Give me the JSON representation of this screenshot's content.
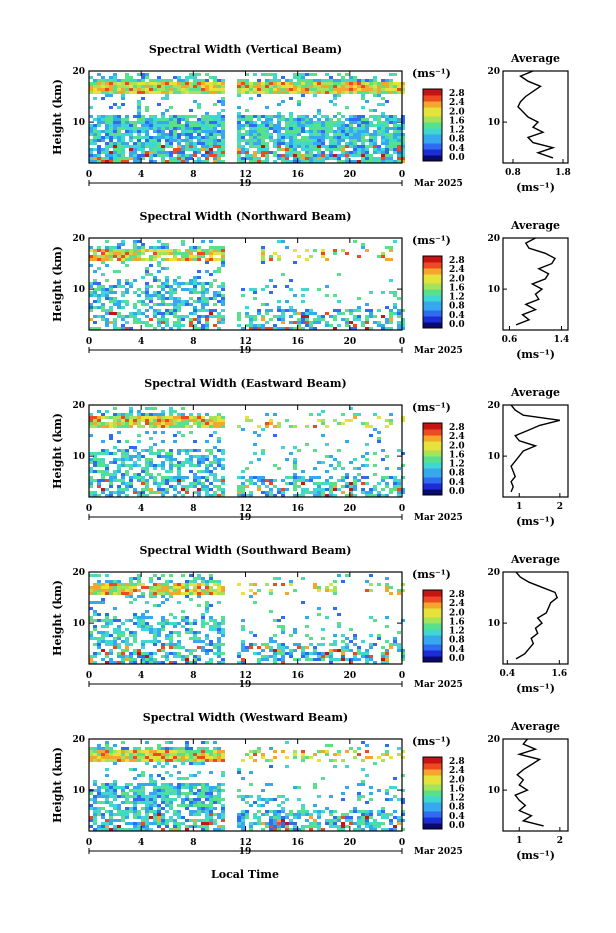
{
  "x_axis_label": "Local Time",
  "date_label": "Mar 2025",
  "day_label": "19",
  "avg_title": "Average",
  "unit_label": "(ms⁻¹)",
  "y_label": "Height (km)",
  "colorbar_ticks": [
    "0.0",
    "0.4",
    "0.8",
    "1.2",
    "1.6",
    "2.0",
    "2.4",
    "2.8"
  ],
  "colormap": [
    "#0a0a6e",
    "#1d2dd6",
    "#2f6cf2",
    "#36a8ee",
    "#3fd7d0",
    "#58e08a",
    "#a4e35a",
    "#e6e23c",
    "#f6a52d",
    "#ee4a22",
    "#c41414"
  ],
  "chart_data": [
    {
      "type": "heatmap",
      "title": "Spectral Width (Vertical Beam)",
      "x_ticks": [
        "0",
        "4",
        "8",
        "12",
        "16",
        "20",
        "0"
      ],
      "y_ticks": [
        "20",
        "10"
      ],
      "xlim": [
        0,
        24
      ],
      "ylim": [
        2,
        20
      ],
      "clim": [
        0.0,
        3.0
      ],
      "average_profile": {
        "x_ticks": [
          "0.8",
          "1.8"
        ],
        "xlim": [
          0.6,
          1.9
        ],
        "heights": [
          3,
          4,
          5,
          6,
          7,
          8,
          9,
          10,
          11,
          12,
          13,
          14,
          15,
          16,
          17,
          18,
          19,
          20
        ],
        "values": [
          1.6,
          1.3,
          1.6,
          1.2,
          1.1,
          1.4,
          1.2,
          1.3,
          1.1,
          1.0,
          0.9,
          0.95,
          1.05,
          1.2,
          1.35,
          1.1,
          0.95,
          1.2
        ]
      }
    },
    {
      "type": "heatmap",
      "title": "Spectral Width (Northward Beam)",
      "x_ticks": [
        "0",
        "4",
        "8",
        "12",
        "16",
        "20",
        "0"
      ],
      "y_ticks": [
        "20",
        "10"
      ],
      "xlim": [
        0,
        24
      ],
      "ylim": [
        2,
        20
      ],
      "clim": [
        0.0,
        3.0
      ],
      "average_profile": {
        "x_ticks": [
          "0.6",
          "1.4"
        ],
        "xlim": [
          0.5,
          1.5
        ],
        "heights": [
          3,
          4,
          5,
          6,
          7,
          8,
          9,
          10,
          11,
          12,
          13,
          14,
          15,
          16,
          17,
          18,
          19,
          20
        ],
        "values": [
          0.7,
          0.9,
          0.8,
          1.0,
          0.85,
          1.05,
          1.0,
          1.1,
          0.95,
          1.15,
          1.2,
          1.05,
          1.25,
          1.3,
          1.15,
          0.9,
          0.85,
          1.0
        ]
      }
    },
    {
      "type": "heatmap",
      "title": "Spectral Width (Eastward Beam)",
      "x_ticks": [
        "0",
        "4",
        "8",
        "12",
        "16",
        "20",
        "0"
      ],
      "y_ticks": [
        "20",
        "10"
      ],
      "xlim": [
        0,
        24
      ],
      "ylim": [
        2,
        20
      ],
      "clim": [
        0.0,
        3.0
      ],
      "average_profile": {
        "x_ticks": [
          "1",
          "2"
        ],
        "xlim": [
          0.6,
          2.2
        ],
        "heights": [
          3,
          4,
          5,
          6,
          7,
          8,
          9,
          10,
          11,
          12,
          13,
          14,
          15,
          16,
          17,
          18,
          19,
          20
        ],
        "values": [
          0.8,
          0.85,
          0.8,
          0.9,
          0.85,
          0.8,
          0.9,
          1.0,
          1.1,
          1.4,
          1.0,
          0.9,
          1.2,
          1.5,
          2.0,
          1.1,
          0.9,
          0.8
        ]
      }
    },
    {
      "type": "heatmap",
      "title": "Spectral Width (Southward Beam)",
      "x_ticks": [
        "0",
        "4",
        "8",
        "12",
        "16",
        "20",
        "0"
      ],
      "y_ticks": [
        "20",
        "10"
      ],
      "xlim": [
        0,
        24
      ],
      "ylim": [
        2,
        20
      ],
      "clim": [
        0.0,
        3.0
      ],
      "average_profile": {
        "x_ticks": [
          "0.4",
          "1.6"
        ],
        "xlim": [
          0.3,
          1.8
        ],
        "heights": [
          3,
          4,
          5,
          6,
          7,
          8,
          9,
          10,
          11,
          12,
          13,
          14,
          15,
          16,
          17,
          18,
          19,
          20
        ],
        "values": [
          0.6,
          0.8,
          0.9,
          1.0,
          0.95,
          1.1,
          1.05,
          1.2,
          1.1,
          1.3,
          1.35,
          1.4,
          1.55,
          1.5,
          1.2,
          0.9,
          0.7,
          0.6
        ]
      }
    },
    {
      "type": "heatmap",
      "title": "Spectral Width (Westward Beam)",
      "x_ticks": [
        "0",
        "4",
        "8",
        "12",
        "16",
        "20",
        "0"
      ],
      "y_ticks": [
        "20",
        "10"
      ],
      "xlim": [
        0,
        24
      ],
      "ylim": [
        2,
        20
      ],
      "clim": [
        0.0,
        3.0
      ],
      "average_profile": {
        "x_ticks": [
          "1",
          "2"
        ],
        "xlim": [
          0.6,
          2.2
        ],
        "heights": [
          3,
          4,
          5,
          6,
          7,
          8,
          9,
          10,
          11,
          12,
          13,
          14,
          15,
          16,
          17,
          18,
          19,
          20
        ],
        "values": [
          1.6,
          1.1,
          1.3,
          1.0,
          1.15,
          1.0,
          0.9,
          1.2,
          1.0,
          1.1,
          0.95,
          1.1,
          1.3,
          1.5,
          1.0,
          1.4,
          1.1,
          1.2
        ]
      }
    }
  ]
}
